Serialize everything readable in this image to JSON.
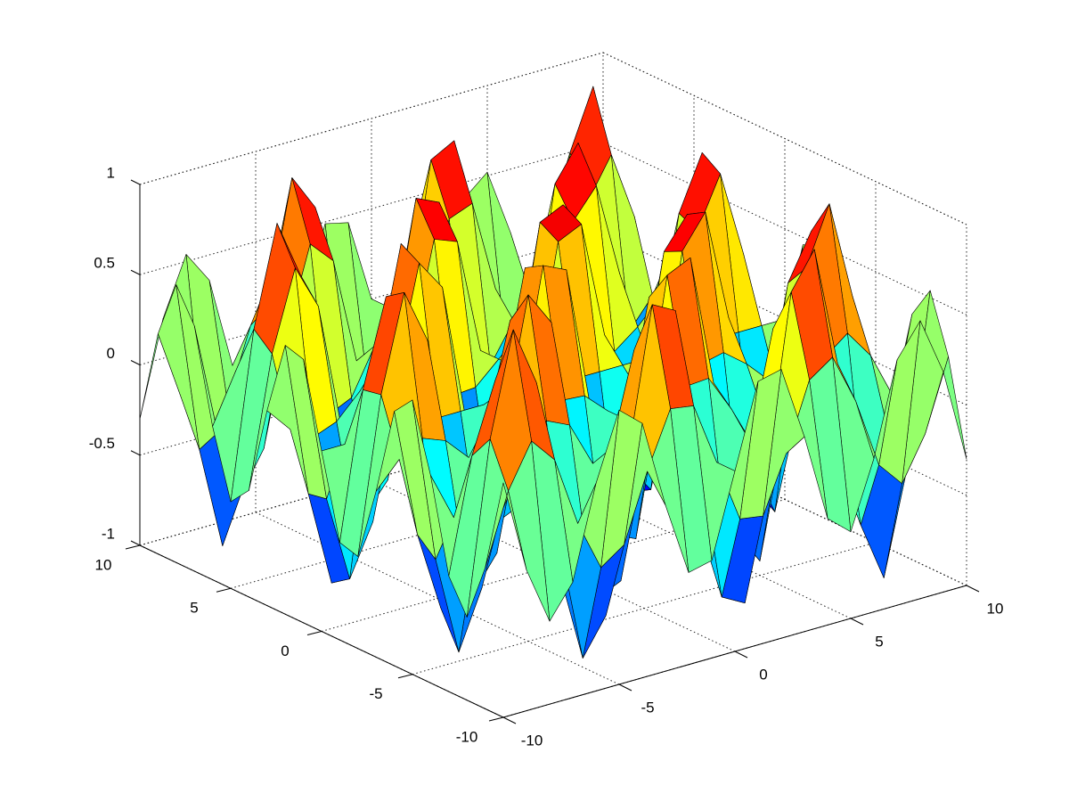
{
  "chart_data": {
    "type": "surface",
    "colormap": "jet",
    "edge_color": "#000000",
    "grid": true,
    "x": [
      -10,
      -9,
      -8,
      -7,
      -6,
      -5,
      -4,
      -3,
      -2,
      -1,
      0,
      1,
      2,
      3,
      4,
      5,
      6,
      7,
      8,
      9,
      10
    ],
    "y": [
      -10,
      -9,
      -8,
      -7,
      -6,
      -5,
      -4,
      -3,
      -2,
      -1,
      0,
      1,
      2,
      3,
      4,
      5,
      6,
      7,
      8,
      9,
      10
    ],
    "z": [
      [
        0.3,
        -0.22,
        -0.54,
        -0.36,
        0.15,
        0.52,
        0.41,
        -0.08,
        -0.49,
        -0.46,
        0,
        0.46,
        0.49,
        0.08,
        -0.41,
        -0.52,
        -0.15,
        0.36,
        0.54,
        0.22,
        -0.3
      ],
      [
        -0.22,
        0.17,
        0.41,
        0.27,
        -0.12,
        -0.4,
        -0.31,
        0.06,
        0.37,
        0.35,
        0,
        -0.35,
        -0.37,
        -0.06,
        0.31,
        0.4,
        0.12,
        -0.27,
        -0.41,
        -0.17,
        0.22
      ],
      [
        -0.54,
        0.41,
        0.98,
        0.65,
        -0.28,
        -0.95,
        -0.75,
        0.14,
        0.9,
        0.83,
        0,
        -0.83,
        -0.9,
        -0.14,
        0.75,
        0.95,
        0.28,
        -0.65,
        -0.98,
        -0.41,
        0.54
      ],
      [
        -0.36,
        0.27,
        0.65,
        0.43,
        -0.18,
        -0.63,
        -0.5,
        0.09,
        0.6,
        0.55,
        0,
        -0.55,
        -0.6,
        -0.09,
        0.5,
        0.63,
        0.18,
        -0.43,
        -0.65,
        -0.27,
        0.36
      ],
      [
        0.15,
        -0.12,
        -0.28,
        -0.18,
        0.08,
        0.27,
        0.21,
        -0.04,
        -0.25,
        -0.24,
        0,
        0.24,
        0.25,
        0.04,
        -0.21,
        -0.27,
        -0.08,
        0.18,
        0.28,
        0.12,
        -0.15
      ],
      [
        0.52,
        -0.4,
        -0.95,
        -0.63,
        0.27,
        0.92,
        0.73,
        -0.14,
        -0.87,
        -0.81,
        0,
        0.81,
        0.87,
        0.14,
        -0.73,
        -0.92,
        -0.27,
        0.63,
        0.95,
        0.4,
        -0.52
      ],
      [
        0.41,
        -0.31,
        -0.75,
        -0.5,
        0.21,
        0.73,
        0.57,
        -0.11,
        -0.69,
        -0.64,
        0,
        0.64,
        0.69,
        0.11,
        -0.57,
        -0.73,
        -0.21,
        0.5,
        0.75,
        0.31,
        -0.41
      ],
      [
        -0.08,
        0.06,
        0.14,
        0.09,
        -0.04,
        -0.14,
        -0.11,
        0.02,
        0.13,
        0.12,
        0,
        -0.12,
        -0.13,
        -0.02,
        0.11,
        0.14,
        0.04,
        -0.09,
        -0.14,
        -0.06,
        0.08
      ],
      [
        -0.49,
        0.37,
        0.9,
        0.6,
        -0.25,
        -0.87,
        -0.69,
        0.13,
        0.83,
        0.77,
        0,
        -0.77,
        -0.83,
        -0.13,
        0.69,
        0.87,
        0.25,
        -0.6,
        -0.9,
        -0.37,
        0.49
      ],
      [
        -0.46,
        0.35,
        0.83,
        0.55,
        -0.24,
        -0.81,
        -0.64,
        0.12,
        0.77,
        0.71,
        0,
        -0.71,
        -0.77,
        -0.12,
        0.64,
        0.81,
        0.24,
        -0.55,
        -0.83,
        -0.35,
        0.46
      ],
      [
        0,
        0,
        0,
        0,
        0,
        0,
        0,
        0,
        0,
        0,
        0,
        0,
        0,
        0,
        0,
        0,
        0,
        0,
        0,
        0,
        0
      ],
      [
        0.46,
        -0.35,
        -0.83,
        -0.55,
        0.24,
        0.81,
        0.64,
        -0.12,
        -0.77,
        -0.71,
        0,
        0.71,
        0.77,
        0.12,
        -0.64,
        -0.81,
        -0.24,
        0.55,
        0.83,
        0.35,
        -0.46
      ],
      [
        0.49,
        -0.37,
        -0.9,
        -0.6,
        0.25,
        0.87,
        0.69,
        -0.13,
        -0.83,
        -0.77,
        0,
        0.77,
        0.83,
        0.13,
        -0.69,
        -0.87,
        -0.25,
        0.6,
        0.9,
        0.37,
        -0.49
      ],
      [
        0.08,
        -0.06,
        -0.14,
        -0.09,
        0.04,
        0.14,
        0.11,
        -0.02,
        -0.13,
        -0.12,
        0,
        0.12,
        0.13,
        0.02,
        -0.11,
        -0.14,
        -0.04,
        0.09,
        0.14,
        0.06,
        -0.08
      ],
      [
        -0.41,
        0.31,
        0.75,
        0.5,
        -0.21,
        -0.73,
        -0.57,
        0.11,
        0.69,
        0.64,
        0,
        -0.64,
        -0.69,
        -0.11,
        0.57,
        0.73,
        0.21,
        -0.5,
        -0.75,
        -0.31,
        0.41
      ],
      [
        -0.52,
        0.4,
        0.95,
        0.63,
        -0.27,
        -0.92,
        -0.73,
        0.14,
        0.87,
        0.81,
        0,
        -0.81,
        -0.87,
        -0.14,
        0.73,
        0.92,
        0.27,
        -0.63,
        -0.95,
        -0.4,
        0.52
      ],
      [
        -0.15,
        0.12,
        0.28,
        0.18,
        -0.08,
        -0.27,
        -0.21,
        0.04,
        0.25,
        0.24,
        0,
        -0.24,
        -0.25,
        -0.04,
        0.21,
        0.27,
        0.08,
        -0.18,
        -0.28,
        -0.12,
        0.15
      ],
      [
        0.36,
        -0.27,
        -0.65,
        -0.43,
        0.18,
        0.63,
        0.5,
        -0.09,
        -0.6,
        -0.55,
        0,
        0.55,
        0.6,
        0.09,
        -0.5,
        -0.63,
        -0.18,
        0.43,
        0.65,
        0.27,
        -0.36
      ],
      [
        0.54,
        -0.41,
        -0.98,
        -0.65,
        0.28,
        0.95,
        0.75,
        -0.14,
        -0.9,
        -0.83,
        0,
        0.83,
        0.9,
        0.14,
        -0.75,
        -0.95,
        -0.28,
        0.65,
        0.98,
        0.41,
        -0.54
      ],
      [
        0.22,
        -0.17,
        -0.41,
        -0.27,
        0.12,
        0.4,
        0.31,
        -0.06,
        -0.37,
        -0.35,
        0,
        0.35,
        0.37,
        0.06,
        -0.31,
        -0.4,
        -0.12,
        0.27,
        0.41,
        0.17,
        -0.22
      ],
      [
        -0.3,
        0.22,
        0.54,
        0.36,
        -0.15,
        -0.52,
        -0.41,
        0.08,
        0.49,
        0.46,
        0,
        -0.46,
        -0.49,
        -0.08,
        0.41,
        0.52,
        0.15,
        -0.36,
        -0.54,
        -0.22,
        0.3
      ]
    ],
    "xlim": [
      -10,
      10
    ],
    "ylim": [
      -10,
      10
    ],
    "zlim": [
      -1,
      1
    ],
    "xticks": [
      -10,
      -5,
      0,
      5,
      10
    ],
    "yticks": [
      -10,
      -5,
      0,
      5,
      10
    ],
    "zticks": [
      -1,
      -0.5,
      0,
      0.5,
      1
    ]
  }
}
